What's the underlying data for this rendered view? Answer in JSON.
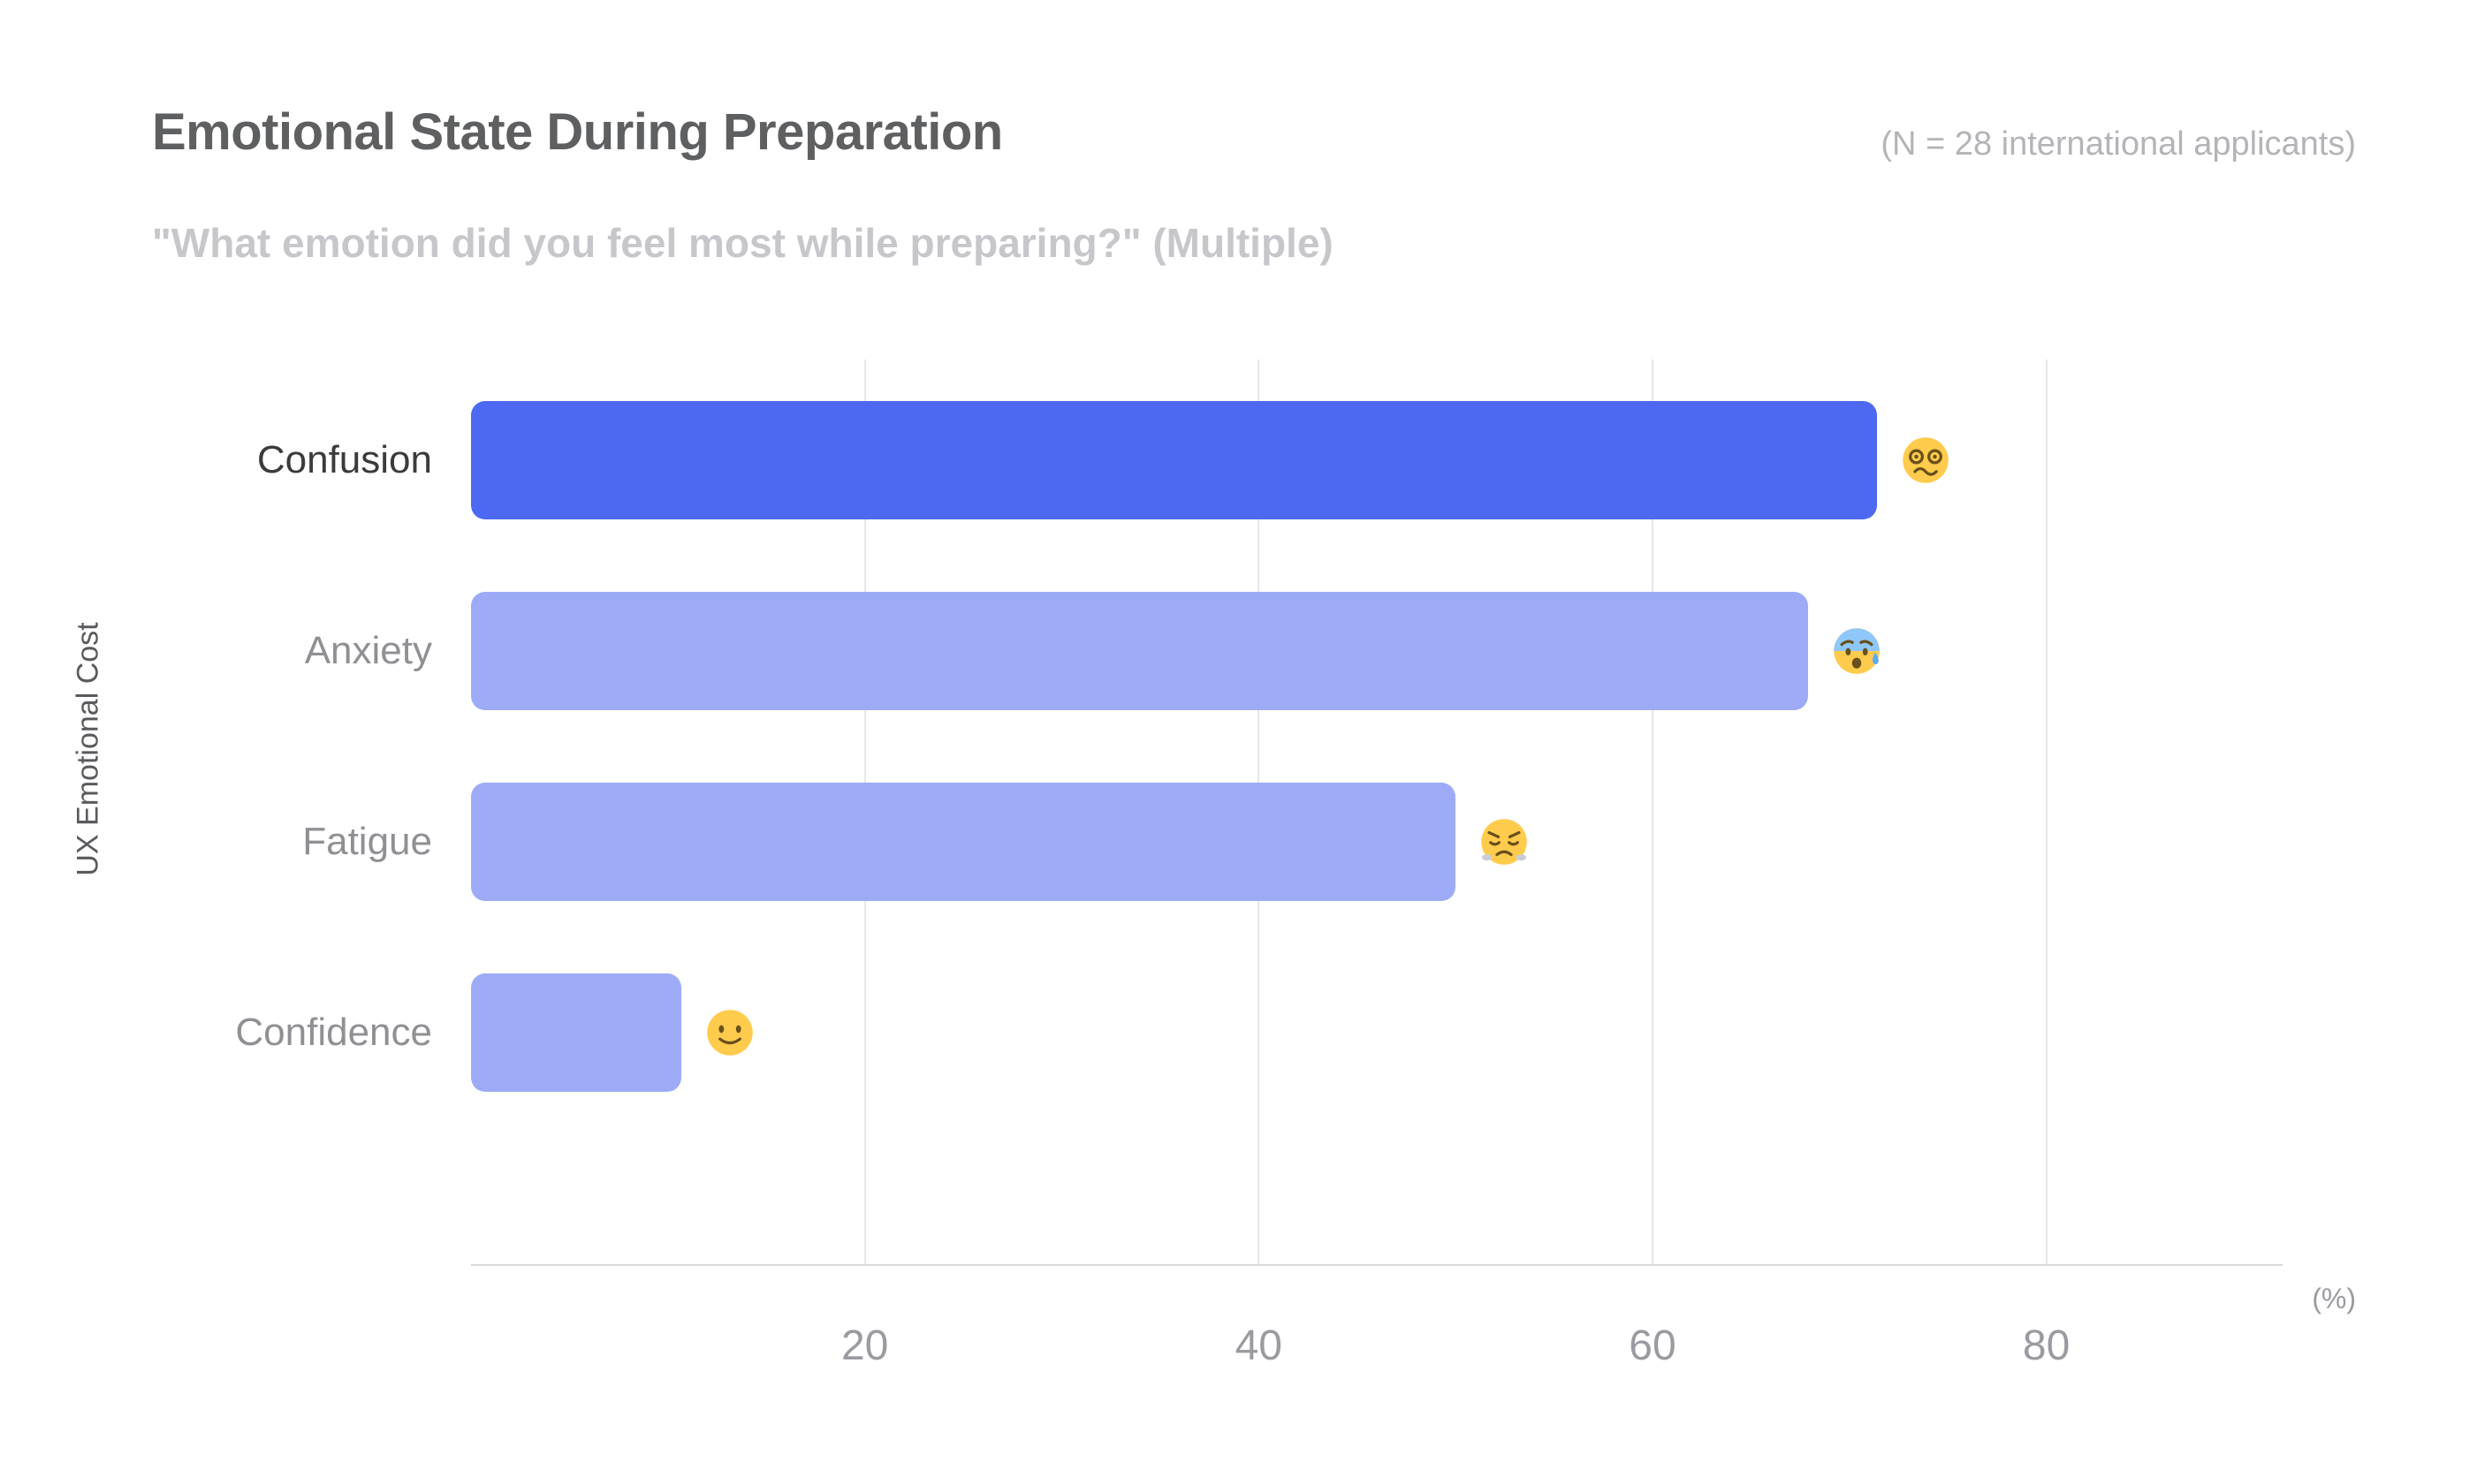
{
  "header": {
    "title": "Emotional State During Preparation",
    "n_note": "(N = 28 international applicants)",
    "subtitle": "\"What emotion did you feel most while preparing?\" (Multiple)"
  },
  "chart_data": {
    "type": "bar",
    "orientation": "horizontal",
    "title": "Emotional State During Preparation",
    "subtitle": "\"What emotion did you feel most while preparing?\" (Multiple)",
    "n_note": "(N = 28 international applicants)",
    "ylabel": "UX Emotional Cost",
    "xlabel": "(%)",
    "categories": [
      "Confusion",
      "Anxiety",
      "Fatigue",
      "Confidence"
    ],
    "values": [
      71.4,
      67.9,
      50.0,
      10.7
    ],
    "emojis": [
      "😵‍💫",
      "😰",
      "😤",
      "🙂"
    ],
    "emoji_names": [
      "face-with-spiral-eyes-icon",
      "anxious-face-with-sweat-icon",
      "face-with-steam-icon",
      "slightly-smiling-face-icon"
    ],
    "x_ticks": [
      20,
      40,
      60,
      80
    ],
    "xlim": [
      0,
      92
    ],
    "grid": true,
    "legend": null,
    "highlight_index": 0,
    "colors": {
      "bar": "#9DABF7",
      "bar_highlight": "#4D69F1",
      "label": "#909094",
      "label_highlight": "#3B3B3D",
      "grid": "#E7E7EA",
      "axis": "#D8D8DC",
      "tick": "#9A9AA0"
    }
  }
}
